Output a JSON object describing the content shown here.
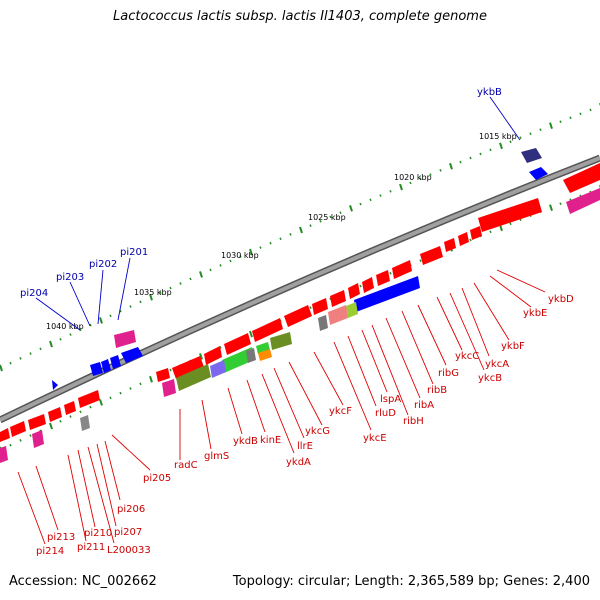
{
  "title": "Lactococcus lactis subsp. lactis Il1403, complete genome",
  "accession": "Accession: NC_002662",
  "info": "Topology: circular; Length: 2,365,589 bp; Genes: 2,400",
  "colors": {
    "backbone": "#808080",
    "red": "#ff0000",
    "blue": "#0000ff",
    "magenta": "#e0208c",
    "olive": "#6b8e23",
    "green": "#32cd32",
    "navy": "#2f2f7f",
    "tick_green": "#228b22"
  },
  "ruler": [
    "1015 kbp",
    "1020 kbp",
    "1025 kbp",
    "1030 kbp",
    "1035 kbp",
    "1040 kbp"
  ],
  "labels_top": [
    "ykbB",
    "pi201",
    "pi202",
    "pi203",
    "pi204"
  ],
  "labels_bottom": [
    "ykbD",
    "ykbE",
    "ykbF",
    "ykcA",
    "ykcB",
    "ykcC",
    "ribG",
    "ribB",
    "ribA",
    "ribH",
    "lspA",
    "rluD",
    "ykcE",
    "ykcF",
    "ykcG",
    "llrE",
    "ykdA",
    "kinE",
    "ykdB",
    "glmS",
    "radC",
    "pi205",
    "pi206",
    "pi207",
    "L200033",
    "pi210",
    "pi211",
    "pi213",
    "pi214"
  ]
}
